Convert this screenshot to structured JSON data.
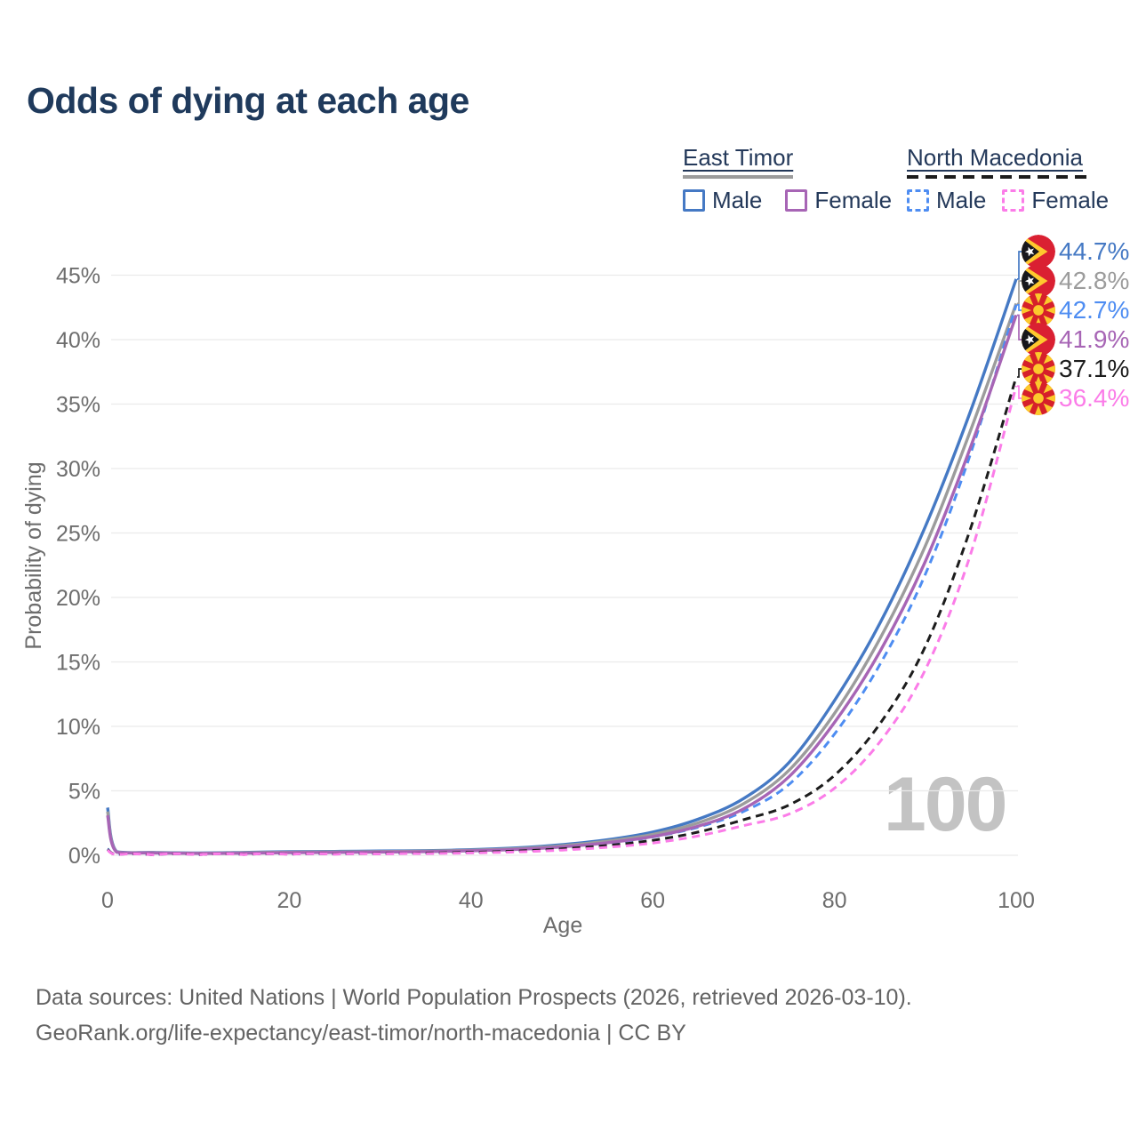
{
  "title": "Odds of dying at each age",
  "watermark": "100",
  "legend": {
    "groups": [
      {
        "label": "East Timor",
        "style": "solid",
        "swatch_color": "#9c9c9c",
        "items": [
          {
            "label": "Male",
            "color": "#4579c4",
            "dash": false
          },
          {
            "label": "Female",
            "color": "#a765b5",
            "dash": false
          }
        ]
      },
      {
        "label": "North Macedonia",
        "style": "dashed",
        "swatch_color": "#1c1c1c",
        "items": [
          {
            "label": "Male",
            "color": "#4e8df2",
            "dash": true
          },
          {
            "label": "Female",
            "color": "#fb7ce8",
            "dash": true
          }
        ]
      }
    ]
  },
  "footer": {
    "line1": "Data sources: United Nations | World Population Prospects (2026, retrieved 2026-03-10).",
    "line2": "GeoRank.org/life-expectancy/east-timor/north-macedonia | CC BY"
  },
  "chart_data": {
    "type": "line",
    "title": "Odds of dying at each age",
    "xlabel": "Age",
    "ylabel": "Probability of dying",
    "x_ticks": [
      0,
      20,
      40,
      60,
      80,
      100
    ],
    "y_ticks_percent": [
      0,
      5,
      10,
      15,
      20,
      25,
      30,
      35,
      40,
      45
    ],
    "xlim": [
      0,
      100
    ],
    "ylim_percent": [
      0,
      47
    ],
    "grid": "horizontal-only",
    "x": [
      0,
      1,
      5,
      10,
      15,
      20,
      25,
      30,
      35,
      40,
      45,
      50,
      55,
      60,
      65,
      70,
      75,
      80,
      85,
      90,
      95,
      100
    ],
    "series": [
      {
        "name": "East Timor Male",
        "country": "East Timor",
        "sex": "Male",
        "flag": "east-timor",
        "color": "#4579c4",
        "dash": "solid",
        "end_label": "44.7%",
        "values": [
          3.7,
          0.28,
          0.22,
          0.18,
          0.22,
          0.28,
          0.3,
          0.33,
          0.36,
          0.43,
          0.57,
          0.82,
          1.2,
          1.8,
          2.8,
          4.4,
          7.2,
          12.0,
          18.0,
          25.5,
          34.5,
          44.7
        ]
      },
      {
        "name": "East Timor Both sexes",
        "country": "East Timor",
        "sex": "Both",
        "flag": "east-timor",
        "color": "#9c9c9c",
        "dash": "solid",
        "end_label": "42.8%",
        "values": [
          3.4,
          0.26,
          0.2,
          0.16,
          0.19,
          0.24,
          0.26,
          0.29,
          0.32,
          0.39,
          0.51,
          0.74,
          1.1,
          1.62,
          2.52,
          4.0,
          6.6,
          11.0,
          16.8,
          24.0,
          33.0,
          42.8
        ]
      },
      {
        "name": "North Macedonia Male",
        "country": "North Macedonia",
        "sex": "Male",
        "flag": "north-macedonia",
        "color": "#4e8df2",
        "dash": "dashed",
        "end_label": "42.7%",
        "values": [
          0.5,
          0.05,
          0.04,
          0.05,
          0.07,
          0.1,
          0.12,
          0.15,
          0.2,
          0.27,
          0.4,
          0.6,
          0.92,
          1.42,
          2.18,
          3.4,
          5.5,
          9.4,
          14.8,
          21.8,
          31.2,
          42.7
        ]
      },
      {
        "name": "East Timor Female",
        "country": "East Timor",
        "sex": "Female",
        "flag": "east-timor",
        "color": "#a765b5",
        "dash": "solid",
        "end_label": "41.9%",
        "values": [
          3.1,
          0.24,
          0.18,
          0.14,
          0.16,
          0.2,
          0.22,
          0.25,
          0.28,
          0.35,
          0.45,
          0.65,
          0.97,
          1.45,
          2.26,
          3.6,
          6.1,
          10.3,
          15.8,
          22.8,
          31.7,
          41.9
        ]
      },
      {
        "name": "North Macedonia Both sexes",
        "country": "North Macedonia",
        "sex": "Both",
        "flag": "north-macedonia",
        "color": "#1c1c1c",
        "dash": "dashed",
        "end_label": "37.1%",
        "values": [
          0.45,
          0.045,
          0.035,
          0.045,
          0.06,
          0.09,
          0.1,
          0.13,
          0.17,
          0.23,
          0.33,
          0.5,
          0.76,
          1.16,
          1.8,
          2.76,
          3.9,
          6.2,
          10.2,
          16.2,
          25.4,
          37.1
        ]
      },
      {
        "name": "North Macedonia Female",
        "country": "North Macedonia",
        "sex": "Female",
        "flag": "north-macedonia",
        "color": "#fb7ce8",
        "dash": "dashed",
        "end_label": "36.4%",
        "values": [
          0.4,
          0.04,
          0.03,
          0.04,
          0.05,
          0.07,
          0.08,
          0.1,
          0.13,
          0.18,
          0.26,
          0.4,
          0.62,
          0.95,
          1.5,
          2.3,
          3.2,
          5.2,
          8.8,
          14.4,
          23.4,
          36.4
        ]
      }
    ]
  }
}
